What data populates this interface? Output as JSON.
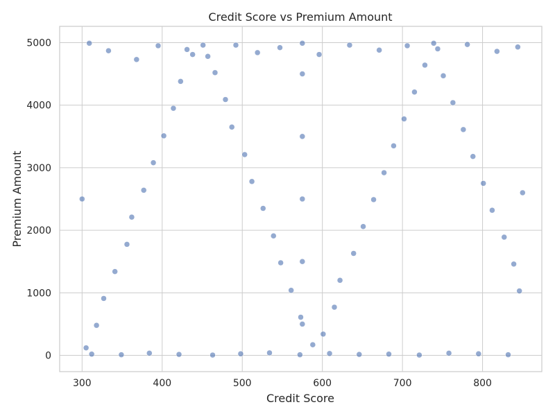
{
  "chart_data": {
    "type": "scatter",
    "title": "Credit Score vs Premium Amount",
    "xlabel": "Credit Score",
    "ylabel": "Premium Amount",
    "xlim": [
      272,
      874
    ],
    "ylim": [
      -260,
      5260
    ],
    "x_ticks": [
      300,
      400,
      500,
      600,
      700,
      800
    ],
    "y_ticks": [
      0,
      1000,
      2000,
      3000,
      4000,
      5000
    ],
    "grid": true,
    "legend": "none",
    "colors": {
      "point_fill": "#4c72b0",
      "point_edge": "#ffffff",
      "grid": "#cccccc",
      "spine": "#cccccc",
      "background": "#ffffff"
    },
    "point_alpha": 0.6,
    "series": [
      {
        "x": [
          305,
          318,
          327,
          341,
          356,
          362,
          377,
          389,
          402,
          414,
          423,
          438,
          451,
          466,
          479,
          487,
          503,
          512,
          526,
          539,
          548,
          561,
          573,
          588,
          601,
          615,
          622,
          639,
          651,
          664,
          677,
          689,
          702,
          715,
          728,
          739,
          751,
          763,
          776,
          788,
          801,
          812,
          827,
          839,
          846,
          309,
          333,
          368,
          395,
          431,
          457,
          492,
          519,
          547,
          575,
          596,
          634,
          671,
          706,
          744,
          781,
          818,
          844,
          312,
          349,
          384,
          421,
          463,
          498,
          534,
          572,
          609,
          646,
          683,
          721,
          758,
          795,
          832,
          300,
          850,
          575,
          575,
          575,
          575,
          575
        ],
        "y": [
          120,
          480,
          910,
          1340,
          1775,
          2210,
          2640,
          3080,
          3510,
          3950,
          4380,
          4810,
          4960,
          4520,
          4090,
          3650,
          3210,
          2780,
          2350,
          1910,
          1480,
          1040,
          610,
          170,
          340,
          770,
          1200,
          1630,
          2060,
          2490,
          2920,
          3350,
          3780,
          4210,
          4640,
          4990,
          4470,
          4040,
          3610,
          3180,
          2750,
          2320,
          1890,
          1460,
          1030,
          4990,
          4870,
          4730,
          4950,
          4890,
          4780,
          4960,
          4840,
          4920,
          4990,
          4810,
          4960,
          4880,
          4950,
          4900,
          4970,
          4860,
          4930,
          20,
          10,
          35,
          15,
          5,
          25,
          40,
          10,
          30,
          15,
          20,
          5,
          35,
          25,
          10,
          2500,
          2600,
          500,
          1500,
          2500,
          3500,
          4500
        ]
      }
    ]
  }
}
